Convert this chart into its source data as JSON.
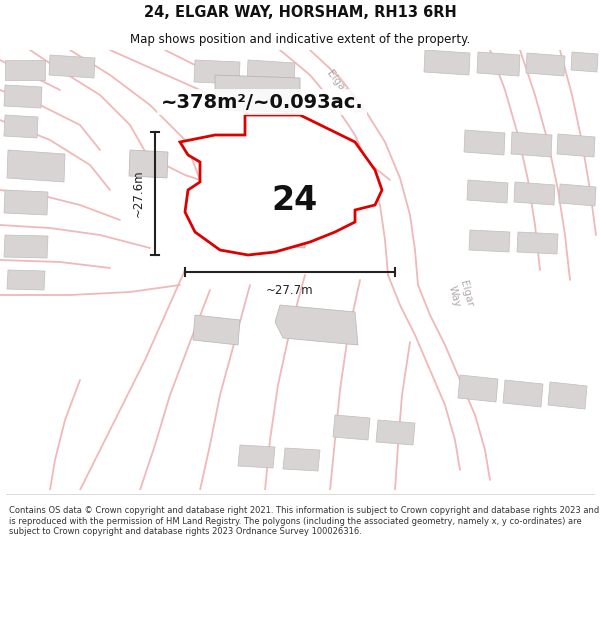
{
  "title": "24, ELGAR WAY, HORSHAM, RH13 6RH",
  "subtitle": "Map shows position and indicative extent of the property.",
  "footer": "Contains OS data © Crown copyright and database right 2021. This information is subject to Crown copyright and database rights 2023 and is reproduced with the permission of HM Land Registry. The polygons (including the associated geometry, namely x, y co-ordinates) are subject to Crown copyright and database rights 2023 Ordnance Survey 100026316.",
  "area_label": "~378m²/~0.093ac.",
  "number_label": "24",
  "dim_horiz": "~27.7m",
  "dim_vert": "~27.6m",
  "map_bg": "#ede9e9",
  "road_color": "#f0b8b8",
  "building_fill": "#d8d4d4",
  "building_stroke": "#c0bcbc",
  "prop_fill": "#ffffff",
  "prop_stroke": "#dd0000",
  "dim_color": "#222222",
  "road_label_color": "#b0aaaa",
  "title_color": "#111111",
  "footer_color": "#333333",
  "white": "#ffffff"
}
